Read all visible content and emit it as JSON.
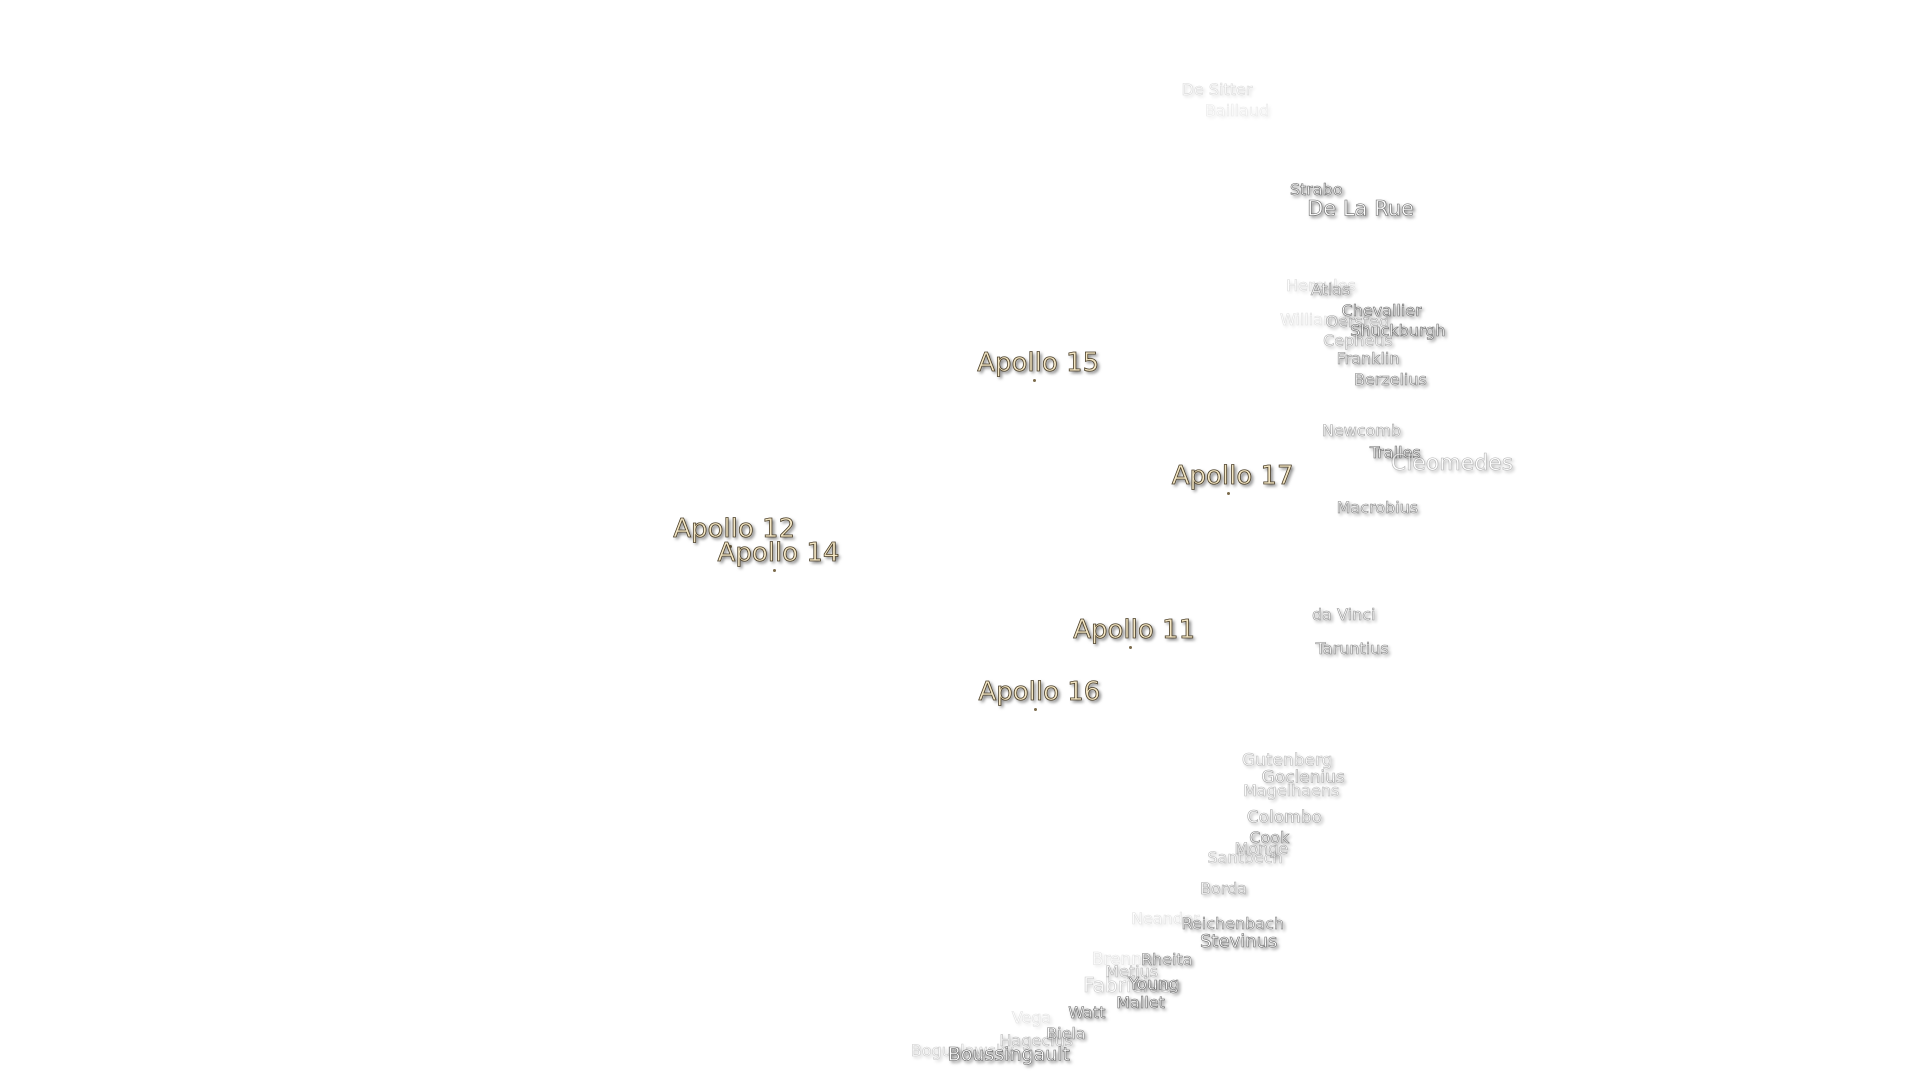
{
  "apollo_sites": [
    "Apollo 15",
    "Apollo 17",
    "Apollo 12",
    "Apollo 14",
    "Apollo 11",
    "Apollo 16"
  ],
  "craters": [
    "De Sitter",
    "Baillaud",
    "Strabo",
    "De La Rue",
    "Hercules",
    "Atlas",
    "Williams",
    "Chevallier",
    "Oersted",
    "Shuckburgh",
    "Cepheus",
    "Franklin",
    "Berzelius",
    "Newcomb",
    "Tralles",
    "Cleomedes",
    "Macrobius",
    "da Vinci",
    "Taruntius",
    "Gutenberg",
    "Goclenius",
    "Magelhaens",
    "Colombo",
    "Cook",
    "Monge",
    "Santbech",
    "Borda",
    "Neander",
    "Reichenbach",
    "Stevinus",
    "Brenner",
    "Rheita",
    "Metius",
    "Fabricius",
    "Young",
    "Mallet",
    "Watt",
    "Vega",
    "Biela",
    "Hagecius",
    "Boguslawsky",
    "Boussingault"
  ]
}
